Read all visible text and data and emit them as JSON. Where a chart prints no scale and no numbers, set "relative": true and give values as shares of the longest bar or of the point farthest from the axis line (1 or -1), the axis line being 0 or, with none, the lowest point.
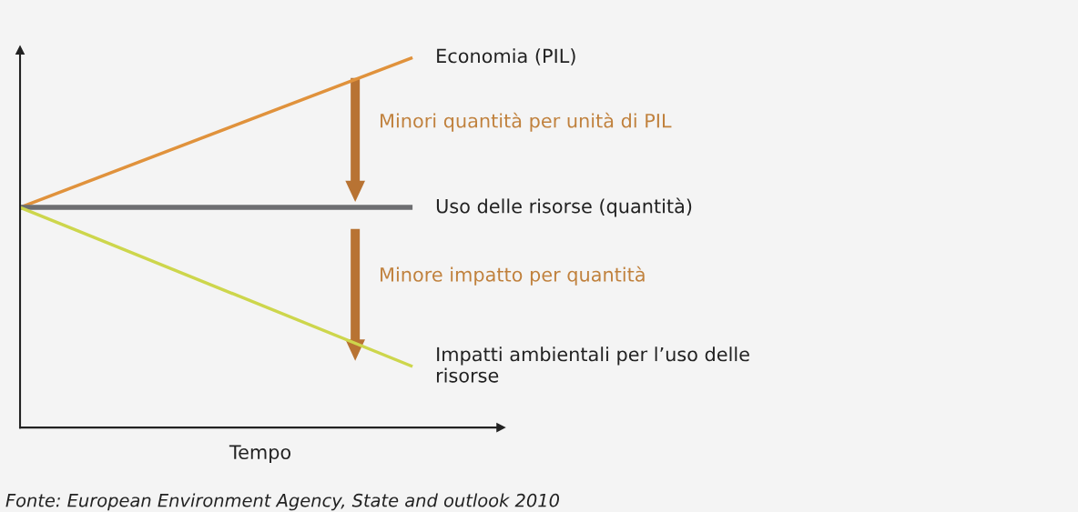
{
  "chart_data": {
    "type": "line",
    "relative": true,
    "categories": [
      null,
      null
    ],
    "xlabel": "Tempo",
    "series": [
      {
        "name": "Economia (PIL)",
        "color": "#e0923c",
        "values": [
          0.595,
          1.0
        ]
      },
      {
        "name": "Uso delle risorse (quantità)",
        "color": "#6d6e71",
        "values": [
          0.595,
          0.595
        ]
      },
      {
        "name": "Impatti ambientali per l’uso delle\nrisorse",
        "color": "#cdd64c",
        "values": [
          0.595,
          0.165
        ]
      }
    ],
    "annotations": [
      "Minori quantità per unità di PIL",
      "Minore impatto per quantità",
      "Fonte: European Environment Agency, State and outlook 2010"
    ],
    "grid": false,
    "legend": false,
    "marker": "none",
    "line_style": "solid"
  }
}
